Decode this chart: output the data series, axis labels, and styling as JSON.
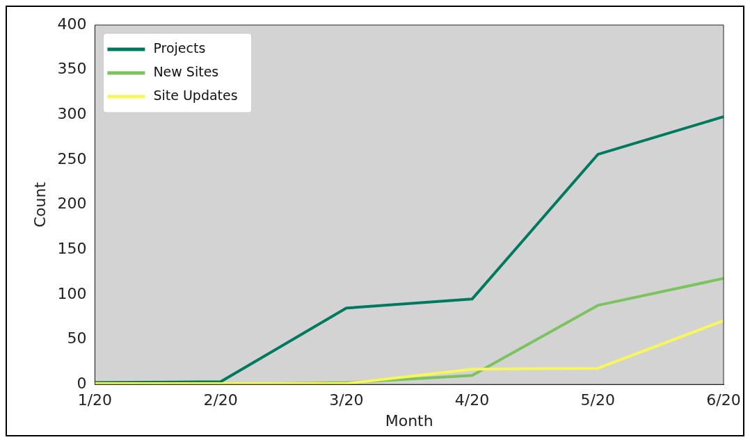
{
  "chart_data": {
    "type": "line",
    "xlabel": "Month",
    "ylabel": "Count",
    "categories": [
      "1/20",
      "2/20",
      "3/20",
      "4/20",
      "5/20",
      "6/20"
    ],
    "series": [
      {
        "name": "Projects",
        "color": "#007a5e",
        "values": [
          2,
          3,
          85,
          95,
          256,
          298
        ]
      },
      {
        "name": "New Sites",
        "color": "#7bc35f",
        "values": [
          0,
          0,
          2,
          10,
          88,
          118
        ]
      },
      {
        "name": "Site Updates",
        "color": "#f8f65a",
        "values": [
          1,
          1,
          1,
          17,
          18,
          71
        ]
      }
    ],
    "ylim": [
      0,
      400
    ],
    "yticks": [
      0,
      50,
      100,
      150,
      200,
      250,
      300,
      350,
      400
    ],
    "grid": false,
    "legend": "top left",
    "marker": "none",
    "line_style": "solid"
  }
}
